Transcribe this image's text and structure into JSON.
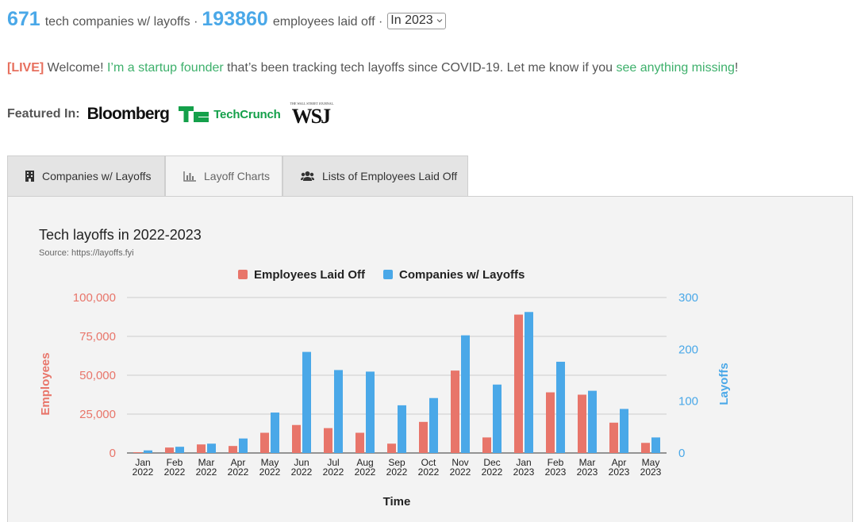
{
  "header": {
    "companies_count": "671",
    "companies_text": "tech companies w/ layoffs ·",
    "employees_count": "193860",
    "employees_text": "employees laid off ·",
    "year_select": "In 2023"
  },
  "welcome": {
    "live": "[LIVE]",
    "text1": "Welcome!",
    "link1": "I’m a startup founder",
    "text2": "that’s been tracking tech layoffs since COVID-19. Let me know if you",
    "link2": "see anything missing",
    "text3": "!"
  },
  "featured": {
    "label": "Featured In:",
    "logos": [
      "Bloomberg",
      "TechCrunch",
      "WSJ"
    ],
    "wsj_tagline": "THE WALL STREET JOURNAL."
  },
  "tabs": [
    {
      "label": "Companies w/ Layoffs",
      "icon": "building-icon",
      "active": false
    },
    {
      "label": "Layoff Charts",
      "icon": "bar-chart-icon",
      "active": true
    },
    {
      "label": "Lists of Employees Laid Off",
      "icon": "users-icon",
      "active": false
    }
  ],
  "chart_data": {
    "type": "bar",
    "title": "Tech layoffs in 2022-2023",
    "subtitle": "Source: https://layoffs.fyi",
    "xlabel": "Time",
    "ylabel_left": "Employees",
    "ylabel_right": "Layoffs",
    "ylim_left": [
      0,
      100000
    ],
    "ylim_right": [
      0,
      300
    ],
    "yticks_left": [
      "0",
      "25,000",
      "50,000",
      "75,000",
      "100,000"
    ],
    "yticks_right": [
      "0",
      "100",
      "200",
      "300"
    ],
    "legend_position": "top",
    "grid": true,
    "categories": [
      [
        "Jan",
        "2022"
      ],
      [
        "Feb",
        "2022"
      ],
      [
        "Mar",
        "2022"
      ],
      [
        "Apr",
        "2022"
      ],
      [
        "May",
        "2022"
      ],
      [
        "Jun",
        "2022"
      ],
      [
        "Jul",
        "2022"
      ],
      [
        "Aug",
        "2022"
      ],
      [
        "Sep",
        "2022"
      ],
      [
        "Oct",
        "2022"
      ],
      [
        "Nov",
        "2022"
      ],
      [
        "Dec",
        "2022"
      ],
      [
        "Jan",
        "2023"
      ],
      [
        "Feb",
        "2023"
      ],
      [
        "Mar",
        "2023"
      ],
      [
        "Apr",
        "2023"
      ],
      [
        "May",
        "2023"
      ]
    ],
    "series": [
      {
        "name": "Employees Laid Off",
        "axis": "left",
        "color": "#e8756a",
        "values": [
          500,
          3500,
          5500,
          4500,
          13000,
          18000,
          16000,
          13000,
          6000,
          20000,
          53000,
          10000,
          89000,
          39000,
          37500,
          19500,
          6500
        ]
      },
      {
        "name": "Companies w/ Layoffs",
        "axis": "right",
        "color": "#4aa8e8",
        "values": [
          5,
          12,
          18,
          28,
          78,
          195,
          160,
          157,
          92,
          106,
          227,
          132,
          272,
          176,
          120,
          85,
          30
        ]
      }
    ],
    "colors": {
      "left_axis": "#e8756a",
      "right_axis": "#4aa8e8",
      "grid": "#cccccc"
    }
  }
}
